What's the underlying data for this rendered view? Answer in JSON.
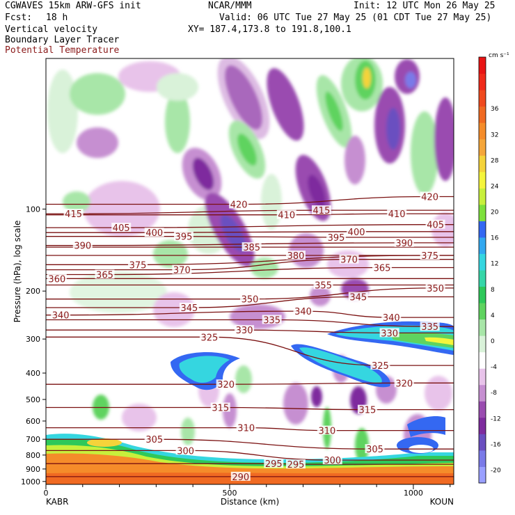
{
  "header": {
    "model": "CGWAVES 15km ARW-GFS init",
    "center": "NCAR/MMM",
    "init": "Init: 12 UTC Mon 26 May 25",
    "fcst_label": "Fcst:",
    "fcst_value": "18 h",
    "valid": "Valid: 06 UTC Tue 27 May 25 (01 CDT Tue 27 May 25)",
    "field1": "Vertical velocity",
    "field2": "Boundary Layer Tracer",
    "field3": "Potential Temperature",
    "xy": "XY= 187.4,173.8 to 191.8,100.1"
  },
  "chart_data": {
    "type": "heatmap",
    "xlabel": "Distance (km)",
    "ylabel": "Pressure (hPa), log scale",
    "x_start_label": "KABR",
    "x_end_label": "KOUN",
    "xlim": [
      0,
      1110
    ],
    "x_ticks": [
      0,
      500,
      1000
    ],
    "ylim": [
      1025,
      28
    ],
    "y_ticks": [
      100,
      200,
      300,
      400,
      500,
      600,
      700,
      800,
      900,
      1000
    ],
    "y_scale": "log",
    "colorbar": {
      "units": "cm s⁻¹",
      "levels": [
        -20,
        -16,
        -12,
        -8,
        -4,
        0,
        4,
        8,
        12,
        16,
        20,
        24,
        28,
        32,
        36
      ],
      "colors": [
        "#9aa0ff",
        "#7a7ae8",
        "#6a4fc0",
        "#7e2c9e",
        "#9a4cb0",
        "#c68fd1",
        "#e8c3ea",
        "#ffffff",
        "#d9f2d9",
        "#a8e6a8",
        "#5fd35f",
        "#2ec85a",
        "#36d6a8",
        "#35d6e0",
        "#32a8f0",
        "#3468f2",
        "#7ee03c",
        "#c8f03c",
        "#f5f53c",
        "#f5d33a",
        "#f5a63a",
        "#f58c2a",
        "#f06a22",
        "#f04a1e",
        "#f02a1a",
        "#e81414"
      ]
    },
    "theta_contours": [
      {
        "level": 290,
        "label_points": [
          [
            530,
            960
          ]
        ]
      },
      {
        "level": 295,
        "label_points": [
          [
            620,
            860
          ],
          [
            680,
            865
          ]
        ]
      },
      {
        "level": 300,
        "label_points": [
          [
            380,
            770
          ],
          [
            780,
            835
          ]
        ]
      },
      {
        "level": 305,
        "label_points": [
          [
            295,
            700
          ],
          [
            895,
            760
          ]
        ]
      },
      {
        "level": 310,
        "label_points": [
          [
            545,
            635
          ],
          [
            765,
            650
          ]
        ]
      },
      {
        "level": 315,
        "label_points": [
          [
            475,
            535
          ],
          [
            875,
            545
          ]
        ]
      },
      {
        "level": 320,
        "label_points": [
          [
            490,
            440
          ],
          [
            975,
            435
          ]
        ]
      },
      {
        "level": 325,
        "label_points": [
          [
            445,
            295
          ],
          [
            910,
            375
          ]
        ]
      },
      {
        "level": 330,
        "label_points": [
          [
            540,
            278
          ],
          [
            935,
            285
          ]
        ]
      },
      {
        "level": 335,
        "label_points": [
          [
            615,
            255
          ],
          [
            1045,
            270
          ]
        ]
      },
      {
        "level": 340,
        "label_points": [
          [
            40,
            245
          ],
          [
            700,
            237
          ],
          [
            940,
            250
          ]
        ]
      },
      {
        "level": 345,
        "label_points": [
          [
            390,
            230
          ],
          [
            850,
            210
          ]
        ]
      },
      {
        "level": 350,
        "label_points": [
          [
            555,
            214
          ],
          [
            1060,
            195
          ]
        ]
      },
      {
        "level": 355,
        "label_points": [
          [
            755,
            190
          ]
        ]
      },
      {
        "level": 360,
        "label_points": [
          [
            30,
            180
          ]
        ]
      },
      {
        "level": 365,
        "label_points": [
          [
            160,
            174
          ],
          [
            915,
            164
          ]
        ]
      },
      {
        "level": 370,
        "label_points": [
          [
            370,
            167
          ],
          [
            825,
            153
          ]
        ]
      },
      {
        "level": 375,
        "label_points": [
          [
            250,
            160
          ],
          [
            1045,
            148
          ]
        ]
      },
      {
        "level": 380,
        "label_points": [
          [
            680,
            148
          ]
        ]
      },
      {
        "level": 385,
        "label_points": [
          [
            560,
            138
          ]
        ]
      },
      {
        "level": 390,
        "label_points": [
          [
            100,
            136
          ],
          [
            975,
            133
          ]
        ]
      },
      {
        "level": 395,
        "label_points": [
          [
            375,
            126
          ],
          [
            790,
            127
          ]
        ]
      },
      {
        "level": 400,
        "label_points": [
          [
            295,
            122
          ],
          [
            845,
            121
          ]
        ]
      },
      {
        "level": 405,
        "label_points": [
          [
            205,
            117
          ],
          [
            1060,
            114
          ]
        ]
      },
      {
        "level": 410,
        "label_points": [
          [
            655,
            105
          ],
          [
            955,
            104
          ]
        ]
      },
      {
        "level": 415,
        "label_points": [
          [
            75,
            104
          ],
          [
            750,
            101
          ]
        ]
      },
      {
        "level": 420,
        "label_points": [
          [
            525,
            96
          ],
          [
            1045,
            90
          ]
        ]
      }
    ]
  }
}
